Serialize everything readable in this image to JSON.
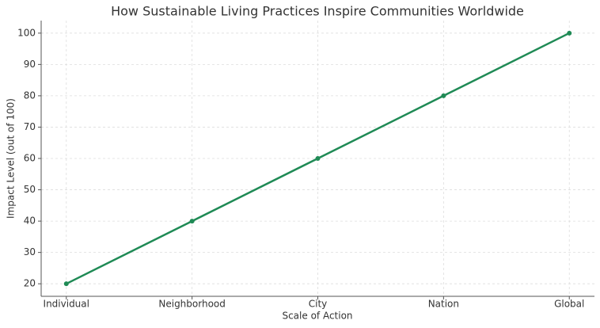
{
  "chart_data": {
    "type": "line",
    "title": "How Sustainable Living Practices Inspire Communities Worldwide",
    "x_label": "Scale of Action",
    "y_label": "Impact Level (out of 100)",
    "categories": [
      "Individual",
      "Neighborhood",
      "City",
      "Nation",
      "Global"
    ],
    "values": [
      20,
      40,
      60,
      80,
      100
    ],
    "color": "#1f8a55",
    "ylim": [
      16,
      104
    ],
    "yticks": [
      20,
      30,
      40,
      50,
      60,
      70,
      80,
      90,
      100
    ],
    "grid": true
  }
}
